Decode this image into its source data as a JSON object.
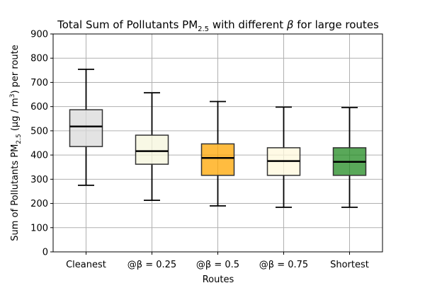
{
  "chart_data": {
    "type": "box",
    "title": "Total Sum of Pollutants PM",
    "title_sub": "2.5",
    "title_rest": " with different ",
    "title_beta": "β",
    "title_end": " for large routes",
    "xlabel": "Routes",
    "ylabel_pre": "Sum of Pollutants PM",
    "ylabel_sub": "2.5",
    "ylabel_post": " (μg / m",
    "ylabel_sup": "3",
    "ylabel_end": ") per route",
    "ylim": [
      0,
      900
    ],
    "yticks": [
      0,
      100,
      200,
      300,
      400,
      500,
      600,
      700,
      800,
      900
    ],
    "grid": true,
    "categories": [
      "Cleanest",
      "@β = 0.25",
      "@β = 0.5",
      "@β = 0.75",
      "Shortest"
    ],
    "boxes": [
      {
        "label": "Cleanest",
        "whisker_low": 275,
        "q1": 435,
        "median": 518,
        "q3": 587,
        "whisker_high": 754,
        "color": "#d9d9d9"
      },
      {
        "label": "@β = 0.25",
        "whisker_low": 213,
        "q1": 362,
        "median": 416,
        "q3": 482,
        "whisker_high": 657,
        "color": "#f5f5dc"
      },
      {
        "label": "@β = 0.5",
        "whisker_low": 190,
        "q1": 316,
        "median": 388,
        "q3": 446,
        "whisker_high": 621,
        "color": "#ffa500"
      },
      {
        "label": "@β = 0.75",
        "whisker_low": 184,
        "q1": 316,
        "median": 375,
        "q3": 430,
        "whisker_high": 598,
        "color": "#fff8dc"
      },
      {
        "label": "Shortest",
        "whisker_low": 184,
        "q1": 316,
        "median": 372,
        "q3": 430,
        "whisker_high": 596,
        "color": "#228b22"
      }
    ]
  }
}
